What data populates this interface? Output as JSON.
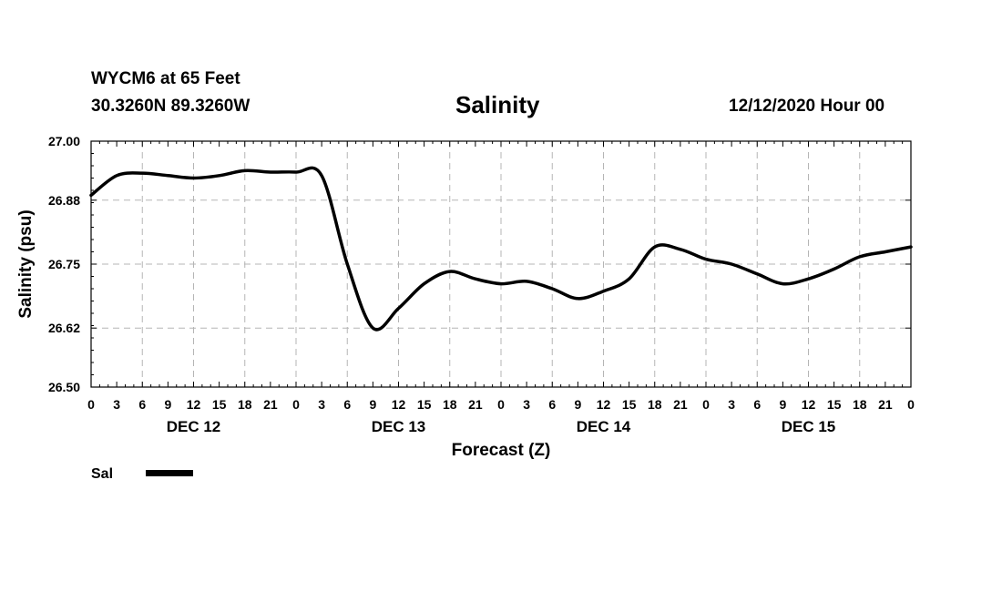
{
  "header": {
    "station": "WYCM6 at 65 Feet",
    "coords": "30.3260N 89.3260W",
    "title": "Salinity",
    "datetime": "12/12/2020 Hour 00"
  },
  "chart_data": {
    "type": "line",
    "title": "Salinity",
    "xlabel": "Forecast (Z)",
    "ylabel": "Salinity (psu)",
    "ylim": [
      26.5,
      27.0
    ],
    "yticks": [
      "26.50",
      "26.62",
      "26.75",
      "26.88",
      "27.00"
    ],
    "xlim_hours": [
      0,
      96
    ],
    "xtick_labels": [
      "0",
      "3",
      "6",
      "9",
      "12",
      "15",
      "18",
      "21",
      "0",
      "3",
      "6",
      "9",
      "12",
      "15",
      "18",
      "21",
      "0",
      "3",
      "6",
      "9",
      "12",
      "15",
      "18",
      "21",
      "0",
      "3",
      "6",
      "9",
      "12",
      "15",
      "18",
      "21",
      "0"
    ],
    "day_labels": [
      "DEC 12",
      "DEC 13",
      "DEC 14",
      "DEC 15"
    ],
    "grid": true,
    "legend": {
      "position": "bottom-left",
      "entries": [
        "Sal"
      ]
    },
    "series": [
      {
        "name": "Sal",
        "color": "#000000",
        "x": [
          0,
          3,
          6,
          9,
          12,
          15,
          18,
          21,
          24,
          27,
          30,
          33,
          36,
          39,
          42,
          45,
          48,
          51,
          54,
          57,
          60,
          63,
          66,
          69,
          72,
          75,
          78,
          81,
          84,
          87,
          90,
          93,
          96
        ],
        "y": [
          26.89,
          26.93,
          26.935,
          26.93,
          26.925,
          26.93,
          26.94,
          26.937,
          26.937,
          26.93,
          26.75,
          26.62,
          26.66,
          26.71,
          26.735,
          26.72,
          26.71,
          26.715,
          26.7,
          26.68,
          26.695,
          26.72,
          26.785,
          26.78,
          26.76,
          26.75,
          26.73,
          26.71,
          26.72,
          26.74,
          26.765,
          26.775,
          26.785
        ]
      }
    ]
  }
}
